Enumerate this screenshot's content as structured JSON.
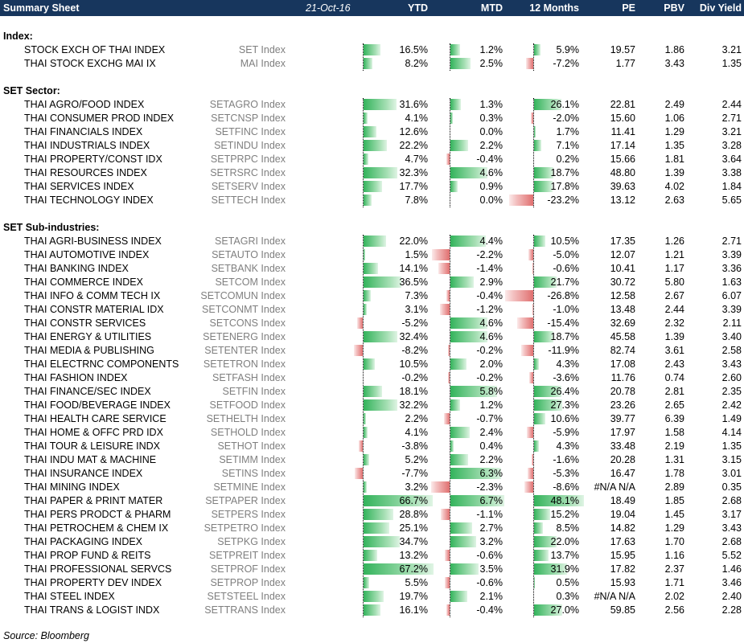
{
  "header": {
    "title": "Summary Sheet",
    "date": "21-Oct-16",
    "cols": [
      "YTD",
      "MTD",
      "12 Months",
      "PE",
      "PBV",
      "Div Yield"
    ]
  },
  "colors": {
    "header_bg": "#17365d",
    "positive_bar": "#33b35b",
    "negative_bar": "#e06f6f"
  },
  "sections": [
    {
      "title": "Index:",
      "rows": [
        {
          "name": "STOCK EXCH OF THAI INDEX",
          "ticker": "SET Index",
          "ytd": "16.5%",
          "mtd": "1.2%",
          "m12": "5.9%",
          "pe": "19.57",
          "pbv": "1.86",
          "div": "3.21",
          "ytd_v": 16.5,
          "mtd_v": 1.2,
          "m12_v": 5.9
        },
        {
          "name": "THAI STOCK EXCHG MAI IX",
          "ticker": "MAI Index",
          "ytd": "8.2%",
          "mtd": "2.5%",
          "m12": "-7.2%",
          "pe": "1.77",
          "pbv": "3.43",
          "div": "1.35",
          "ytd_v": 8.2,
          "mtd_v": 2.5,
          "m12_v": -7.2
        }
      ]
    },
    {
      "title": "SET Sector:",
      "rows": [
        {
          "name": "THAI AGRO/FOOD INDEX",
          "ticker": "SETAGRO Index",
          "ytd": "31.6%",
          "mtd": "1.3%",
          "m12": "26.1%",
          "pe": "22.81",
          "pbv": "2.49",
          "div": "2.44",
          "ytd_v": 31.6,
          "mtd_v": 1.3,
          "m12_v": 26.1
        },
        {
          "name": "THAI CONSUMER PROD INDEX",
          "ticker": "SETCNSP Index",
          "ytd": "4.1%",
          "mtd": "0.3%",
          "m12": "-2.0%",
          "pe": "15.60",
          "pbv": "1.06",
          "div": "2.71",
          "ytd_v": 4.1,
          "mtd_v": 0.3,
          "m12_v": -2.0
        },
        {
          "name": "THAI FINANCIALS INDEX",
          "ticker": "SETFINC Index",
          "ytd": "12.6%",
          "mtd": "0.0%",
          "m12": "1.7%",
          "pe": "11.41",
          "pbv": "1.29",
          "div": "3.21",
          "ytd_v": 12.6,
          "mtd_v": 0.0,
          "m12_v": 1.7
        },
        {
          "name": "THAI INDUSTRIALS INDEX",
          "ticker": "SETINDU Index",
          "ytd": "22.2%",
          "mtd": "2.2%",
          "m12": "7.1%",
          "pe": "17.14",
          "pbv": "1.35",
          "div": "3.28",
          "ytd_v": 22.2,
          "mtd_v": 2.2,
          "m12_v": 7.1
        },
        {
          "name": "THAI PROPERTY/CONST IDX",
          "ticker": "SETPRPC Index",
          "ytd": "4.7%",
          "mtd": "-0.4%",
          "m12": "0.2%",
          "pe": "15.66",
          "pbv": "1.81",
          "div": "3.64",
          "ytd_v": 4.7,
          "mtd_v": -0.4,
          "m12_v": 0.2
        },
        {
          "name": "THAI RESOURCES INDEX",
          "ticker": "SETRSRC Index",
          "ytd": "32.3%",
          "mtd": "4.6%",
          "m12": "18.7%",
          "pe": "48.80",
          "pbv": "1.39",
          "div": "3.38",
          "ytd_v": 32.3,
          "mtd_v": 4.6,
          "m12_v": 18.7
        },
        {
          "name": "THAI SERVICES INDEX",
          "ticker": "SETSERV Index",
          "ytd": "17.7%",
          "mtd": "0.9%",
          "m12": "17.8%",
          "pe": "39.63",
          "pbv": "4.02",
          "div": "1.84",
          "ytd_v": 17.7,
          "mtd_v": 0.9,
          "m12_v": 17.8
        },
        {
          "name": "THAI TECHNOLOGY INDEX",
          "ticker": "SETTECH Index",
          "ytd": "7.8%",
          "mtd": "0.0%",
          "m12": "-23.2%",
          "pe": "13.12",
          "pbv": "2.63",
          "div": "5.65",
          "ytd_v": 7.8,
          "mtd_v": 0.0,
          "m12_v": -23.2
        }
      ]
    },
    {
      "title": "SET Sub-industries:",
      "rows": [
        {
          "name": "THAI AGRI-BUSINESS INDEX",
          "ticker": "SETAGRI Index",
          "ytd": "22.0%",
          "mtd": "4.4%",
          "m12": "10.5%",
          "pe": "17.35",
          "pbv": "1.26",
          "div": "2.71",
          "ytd_v": 22.0,
          "mtd_v": 4.4,
          "m12_v": 10.5
        },
        {
          "name": "THAI AUTOMOTIVE INDEX",
          "ticker": "SETAUTO Index",
          "ytd": "1.5%",
          "mtd": "-2.2%",
          "m12": "-5.0%",
          "pe": "12.07",
          "pbv": "1.21",
          "div": "3.39",
          "ytd_v": 1.5,
          "mtd_v": -2.2,
          "m12_v": -5.0
        },
        {
          "name": "THAI BANKING INDEX",
          "ticker": "SETBANK Index",
          "ytd": "14.1%",
          "mtd": "-1.4%",
          "m12": "-0.6%",
          "pe": "10.41",
          "pbv": "1.17",
          "div": "3.36",
          "ytd_v": 14.1,
          "mtd_v": -1.4,
          "m12_v": -0.6
        },
        {
          "name": "THAI COMMERCE INDEX",
          "ticker": "SETCOM Index",
          "ytd": "36.5%",
          "mtd": "2.9%",
          "m12": "21.7%",
          "pe": "30.72",
          "pbv": "5.80",
          "div": "1.63",
          "ytd_v": 36.5,
          "mtd_v": 2.9,
          "m12_v": 21.7
        },
        {
          "name": "THAI INFO & COMM TECH IX",
          "ticker": "SETCOMUN Index",
          "ytd": "7.3%",
          "mtd": "-0.4%",
          "m12": "-26.8%",
          "pe": "12.58",
          "pbv": "2.67",
          "div": "6.07",
          "ytd_v": 7.3,
          "mtd_v": -0.4,
          "m12_v": -26.8
        },
        {
          "name": "THAI CONSTR MATERIAL IDX",
          "ticker": "SETCONMT Index",
          "ytd": "3.1%",
          "mtd": "-1.2%",
          "m12": "-1.0%",
          "pe": "13.48",
          "pbv": "2.44",
          "div": "3.39",
          "ytd_v": 3.1,
          "mtd_v": -1.2,
          "m12_v": -1.0
        },
        {
          "name": "THAI CONSTR SERVICES",
          "ticker": "SETCONS Index",
          "ytd": "-5.2%",
          "mtd": "4.6%",
          "m12": "-15.4%",
          "pe": "32.69",
          "pbv": "2.32",
          "div": "2.11",
          "ytd_v": -5.2,
          "mtd_v": 4.6,
          "m12_v": -15.4
        },
        {
          "name": "THAI ENERGY & UTILITIES",
          "ticker": "SETENERG Index",
          "ytd": "32.4%",
          "mtd": "4.6%",
          "m12": "18.7%",
          "pe": "45.58",
          "pbv": "1.39",
          "div": "3.40",
          "ytd_v": 32.4,
          "mtd_v": 4.6,
          "m12_v": 18.7
        },
        {
          "name": "THAI MEDIA & PUBLISHING",
          "ticker": "SETENTER Index",
          "ytd": "-8.2%",
          "mtd": "-0.2%",
          "m12": "-11.9%",
          "pe": "82.74",
          "pbv": "3.61",
          "div": "2.58",
          "ytd_v": -8.2,
          "mtd_v": -0.2,
          "m12_v": -11.9
        },
        {
          "name": "THAI ELECTRNC COMPONENTS",
          "ticker": "SETETRON Index",
          "ytd": "10.5%",
          "mtd": "2.0%",
          "m12": "4.3%",
          "pe": "17.08",
          "pbv": "2.43",
          "div": "3.43",
          "ytd_v": 10.5,
          "mtd_v": 2.0,
          "m12_v": 4.3
        },
        {
          "name": "THAI FASHION INDEX",
          "ticker": "SETFASH Index",
          "ytd": "-0.2%",
          "mtd": "-0.2%",
          "m12": "-3.6%",
          "pe": "11.76",
          "pbv": "0.74",
          "div": "2.60",
          "ytd_v": -0.2,
          "mtd_v": -0.2,
          "m12_v": -3.6
        },
        {
          "name": "THAI FINANCE/SEC INDEX",
          "ticker": "SETFIN Index",
          "ytd": "18.1%",
          "mtd": "5.8%",
          "m12": "26.4%",
          "pe": "20.78",
          "pbv": "2.81",
          "div": "2.35",
          "ytd_v": 18.1,
          "mtd_v": 5.8,
          "m12_v": 26.4
        },
        {
          "name": "THAI FOOD/BEVERAGE INDEX",
          "ticker": "SETFOOD Index",
          "ytd": "32.2%",
          "mtd": "1.2%",
          "m12": "27.3%",
          "pe": "23.26",
          "pbv": "2.65",
          "div": "2.42",
          "ytd_v": 32.2,
          "mtd_v": 1.2,
          "m12_v": 27.3
        },
        {
          "name": "THAI HEALTH CARE SERVICE",
          "ticker": "SETHELTH Index",
          "ytd": "2.2%",
          "mtd": "-0.7%",
          "m12": "10.6%",
          "pe": "39.77",
          "pbv": "6.39",
          "div": "1.49",
          "ytd_v": 2.2,
          "mtd_v": -0.7,
          "m12_v": 10.6
        },
        {
          "name": "THAI HOME & OFFC PRD IDX",
          "ticker": "SETHOLD Index",
          "ytd": "4.1%",
          "mtd": "2.4%",
          "m12": "-5.9%",
          "pe": "17.97",
          "pbv": "1.58",
          "div": "4.14",
          "ytd_v": 4.1,
          "mtd_v": 2.4,
          "m12_v": -5.9
        },
        {
          "name": "THAI TOUR & LEISURE INDX",
          "ticker": "SETHOT Index",
          "ytd": "-3.8%",
          "mtd": "0.4%",
          "m12": "4.3%",
          "pe": "33.48",
          "pbv": "2.19",
          "div": "1.35",
          "ytd_v": -3.8,
          "mtd_v": 0.4,
          "m12_v": 4.3
        },
        {
          "name": "THAI INDU MAT & MACHINE",
          "ticker": "SETIMM Index",
          "ytd": "5.2%",
          "mtd": "2.2%",
          "m12": "-1.6%",
          "pe": "20.28",
          "pbv": "1.31",
          "div": "3.15",
          "ytd_v": 5.2,
          "mtd_v": 2.2,
          "m12_v": -1.6
        },
        {
          "name": "THAI INSURANCE INDEX",
          "ticker": "SETINS Index",
          "ytd": "-7.7%",
          "mtd": "6.3%",
          "m12": "-5.3%",
          "pe": "16.47",
          "pbv": "1.78",
          "div": "3.01",
          "ytd_v": -7.7,
          "mtd_v": 6.3,
          "m12_v": -5.3
        },
        {
          "name": "THAI MINING INDEX",
          "ticker": "SETMINE Index",
          "ytd": "3.2%",
          "mtd": "-2.3%",
          "m12": "-8.6%",
          "pe": "#N/A N/A",
          "pbv": "2.89",
          "div": "0.35",
          "ytd_v": 3.2,
          "mtd_v": -2.3,
          "m12_v": -8.6
        },
        {
          "name": "THAI PAPER & PRINT MATER",
          "ticker": "SETPAPER Index",
          "ytd": "66.7%",
          "mtd": "6.7%",
          "m12": "48.1%",
          "pe": "18.49",
          "pbv": "1.85",
          "div": "2.68",
          "ytd_v": 66.7,
          "mtd_v": 6.7,
          "m12_v": 48.1
        },
        {
          "name": "THAI PERS PRODCT & PHARM",
          "ticker": "SETPERS Index",
          "ytd": "28.8%",
          "mtd": "-1.1%",
          "m12": "15.2%",
          "pe": "19.04",
          "pbv": "1.45",
          "div": "3.17",
          "ytd_v": 28.8,
          "mtd_v": -1.1,
          "m12_v": 15.2
        },
        {
          "name": "THAI PETROCHEM & CHEM IX",
          "ticker": "SETPETRO Index",
          "ytd": "25.1%",
          "mtd": "2.7%",
          "m12": "8.5%",
          "pe": "14.82",
          "pbv": "1.29",
          "div": "3.43",
          "ytd_v": 25.1,
          "mtd_v": 2.7,
          "m12_v": 8.5
        },
        {
          "name": "THAI PACKAGING INDEX",
          "ticker": "SETPKG Index",
          "ytd": "34.7%",
          "mtd": "3.2%",
          "m12": "22.0%",
          "pe": "17.63",
          "pbv": "1.70",
          "div": "2.68",
          "ytd_v": 34.7,
          "mtd_v": 3.2,
          "m12_v": 22.0
        },
        {
          "name": "THAI PROP FUND & REITS",
          "ticker": "SETPREIT Index",
          "ytd": "13.2%",
          "mtd": "-0.6%",
          "m12": "13.7%",
          "pe": "15.95",
          "pbv": "1.16",
          "div": "5.52",
          "ytd_v": 13.2,
          "mtd_v": -0.6,
          "m12_v": 13.7
        },
        {
          "name": "THAI PROFESSIONAL SERVCS",
          "ticker": "SETPROF Index",
          "ytd": "67.2%",
          "mtd": "3.5%",
          "m12": "31.9%",
          "pe": "17.82",
          "pbv": "2.37",
          "div": "1.46",
          "ytd_v": 67.2,
          "mtd_v": 3.5,
          "m12_v": 31.9
        },
        {
          "name": "THAI PROPERTY DEV INDEX",
          "ticker": "SETPROP Index",
          "ytd": "5.5%",
          "mtd": "-0.6%",
          "m12": "0.5%",
          "pe": "15.93",
          "pbv": "1.71",
          "div": "3.46",
          "ytd_v": 5.5,
          "mtd_v": -0.6,
          "m12_v": 0.5
        },
        {
          "name": "THAI STEEL INDEX",
          "ticker": "SETSTEEL Index",
          "ytd": "19.7%",
          "mtd": "2.1%",
          "m12": "0.3%",
          "pe": "#N/A N/A",
          "pbv": "2.02",
          "div": "2.40",
          "ytd_v": 19.7,
          "mtd_v": 2.1,
          "m12_v": 0.3
        },
        {
          "name": "THAI TRANS & LOGIST INDX",
          "ticker": "SETTRANS Index",
          "ytd": "16.1%",
          "mtd": "-0.4%",
          "m12": "27.0%",
          "pe": "59.85",
          "pbv": "2.56",
          "div": "2.28",
          "ytd_v": 16.1,
          "mtd_v": -0.4,
          "m12_v": 27.0
        }
      ]
    }
  ],
  "source": "Source: Bloomberg"
}
